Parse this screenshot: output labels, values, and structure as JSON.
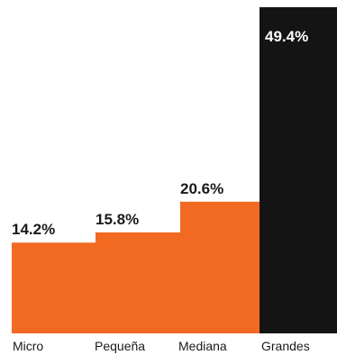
{
  "chart_data": {
    "type": "bar",
    "categories": [
      "Micro",
      "Pequeña",
      "Mediana",
      "Grandes"
    ],
    "values": [
      14.2,
      15.8,
      20.6,
      49.4
    ],
    "data_labels": [
      "14.2%",
      "15.8%",
      "20.6%",
      "49.4%"
    ],
    "ylim": [
      0,
      50
    ],
    "grid": false,
    "legend": "none",
    "colors": {
      "orange": "#f26a21",
      "black": "#141414",
      "label_dark": "#1a1a1a",
      "label_light": "#ffffff"
    }
  }
}
